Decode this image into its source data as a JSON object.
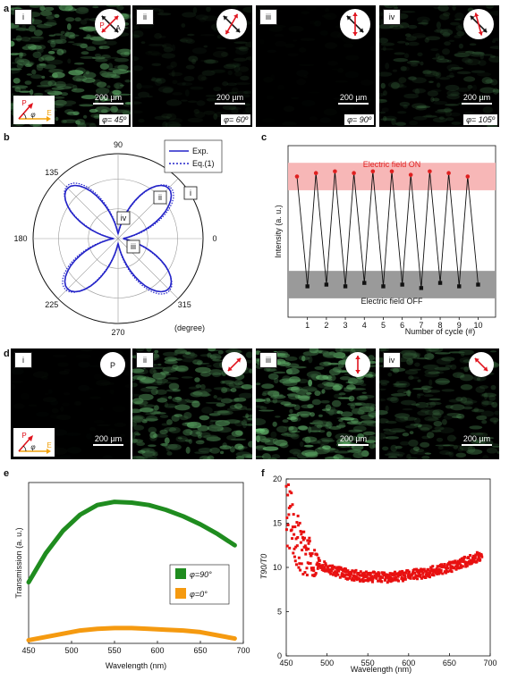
{
  "panel_labels": {
    "a": "a",
    "b": "b",
    "c": "c",
    "d": "d",
    "e": "e",
    "f": "f"
  },
  "panel_a": {
    "tiles": [
      {
        "tag": "i",
        "scale": "200 µm",
        "phi": "φ= 45º",
        "brightness": 0.9
      },
      {
        "tag": "ii",
        "scale": "200 µm",
        "phi": "φ= 60º",
        "brightness": 0.35
      },
      {
        "tag": "iii",
        "scale": "200 µm",
        "phi": "φ= 90º",
        "brightness": 0.05
      },
      {
        "tag": "iv",
        "scale": "200 µm",
        "phi": "φ= 105º",
        "brightness": 0.5
      }
    ],
    "polarizer_labels": {
      "p": "P",
      "a": "A"
    },
    "inset": {
      "p": "P",
      "phi": "φ",
      "e": "E"
    }
  },
  "panel_d": {
    "tiles": [
      {
        "tag": "i",
        "scale": "200 µm",
        "brightness": 0.05
      },
      {
        "tag": "ii",
        "scale": "",
        "brightness": 0.85
      },
      {
        "tag": "iii",
        "scale": "200 µm",
        "brightness": 0.95
      },
      {
        "tag": "iv",
        "scale": "200 µm",
        "brightness": 0.65
      }
    ],
    "polarizer_label": "P",
    "inset": {
      "p": "P",
      "phi": "φ",
      "e": "E"
    }
  },
  "chart_data": [
    {
      "type": "scatter",
      "panel": "b",
      "angle_ticks": [
        "90",
        "135",
        "180",
        "225",
        "270",
        "315",
        "0"
      ],
      "unit_label": "(degree)",
      "legend": [
        "Exp.",
        "Eq.(1)"
      ],
      "markers": [
        "i",
        "ii",
        "iii",
        "iv"
      ],
      "colors": {
        "line": "#2323c8"
      }
    },
    {
      "type": "line",
      "panel": "c",
      "ylabel": "Intensity (a. u.)",
      "xlabel": "Number of cycle (#)",
      "categories": [
        1,
        2,
        3,
        4,
        5,
        6,
        7,
        8,
        9,
        10
      ],
      "on_label": "Electric field ON",
      "off_label": "Electric field OFF",
      "on_values": [
        0.82,
        0.84,
        0.85,
        0.84,
        0.85,
        0.85,
        0.83,
        0.85,
        0.84,
        0.82
      ],
      "off_values": [
        0.18,
        0.19,
        0.18,
        0.2,
        0.18,
        0.19,
        0.17,
        0.2,
        0.18,
        0.19
      ],
      "colors": {
        "on": "#e02020",
        "off": "#111111",
        "on_band": "#f7b7b7",
        "off_band": "#9a9a9a"
      }
    },
    {
      "type": "line",
      "panel": "e",
      "ylabel": "Transmission (a. u.)",
      "xlabel": "Wavelength (nm)",
      "xticks": [
        450,
        500,
        550,
        600,
        650,
        700
      ],
      "xlim": [
        450,
        700
      ],
      "series": [
        {
          "name": "φ=90°",
          "color": "#1f8c1f",
          "x": [
            450,
            470,
            490,
            510,
            530,
            550,
            570,
            590,
            610,
            630,
            650,
            670,
            690
          ],
          "y": [
            0.38,
            0.56,
            0.7,
            0.8,
            0.86,
            0.88,
            0.875,
            0.86,
            0.83,
            0.79,
            0.74,
            0.68,
            0.61
          ]
        },
        {
          "name": "φ=0°",
          "color": "#f59a10",
          "x": [
            450,
            470,
            490,
            510,
            530,
            550,
            570,
            590,
            610,
            630,
            650,
            670,
            690
          ],
          "y": [
            0.02,
            0.04,
            0.06,
            0.08,
            0.09,
            0.095,
            0.095,
            0.09,
            0.085,
            0.08,
            0.07,
            0.05,
            0.03
          ]
        }
      ]
    },
    {
      "type": "scatter",
      "panel": "f",
      "ylabel": "T90/T0",
      "xlabel": "Wavelength (nm)",
      "xticks": [
        450,
        500,
        550,
        600,
        650,
        700
      ],
      "yticks": [
        0,
        5,
        10,
        15,
        20
      ],
      "xlim": [
        450,
        700
      ],
      "ylim": [
        0,
        20
      ],
      "trend": {
        "x": [
          450,
          460,
          470,
          480,
          490,
          500,
          520,
          550,
          580,
          600,
          620,
          640,
          660,
          680,
          690
        ],
        "y": [
          16.5,
          14,
          12,
          11,
          10.5,
          10,
          9.3,
          8.9,
          8.9,
          9.1,
          9.4,
          9.8,
          10.3,
          11,
          11.5
        ]
      },
      "colors": {
        "points": "#e81010"
      }
    }
  ]
}
